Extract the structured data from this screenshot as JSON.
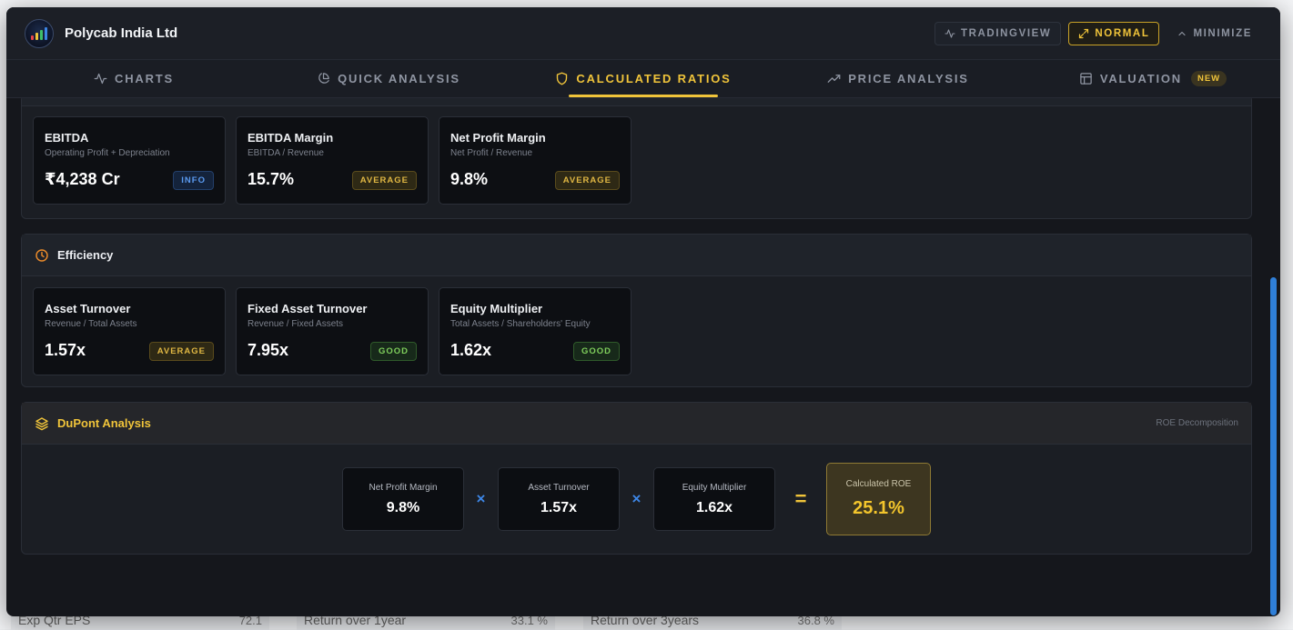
{
  "background": {
    "bottom_row": [
      {
        "label": "Exp Qtr EPS",
        "value": "72.1"
      },
      {
        "label": "Return over 1year",
        "value": "33.1 %"
      },
      {
        "label": "Return over 3years",
        "value": "36.8 %"
      }
    ]
  },
  "header": {
    "company": "Polycab India Ltd",
    "actions": [
      {
        "label": "TRADINGVIEW",
        "icon": "activity-icon"
      },
      {
        "label": "NORMAL",
        "icon": "expand-icon",
        "active": true
      },
      {
        "label": "MINIMIZE",
        "icon": "chevron-up-icon"
      }
    ]
  },
  "tabs": [
    {
      "label": "CHARTS",
      "icon": "activity-icon"
    },
    {
      "label": "QUICK ANALYSIS",
      "icon": "pie-chart-icon"
    },
    {
      "label": "CALCULATED RATIOS",
      "icon": "shield-icon",
      "active": true
    },
    {
      "label": "PRICE ANALYSIS",
      "icon": "trending-up-icon"
    },
    {
      "label": "VALUATION",
      "icon": "table-icon",
      "badge": "NEW"
    }
  ],
  "profitability": {
    "cards": [
      {
        "name": "EBITDA",
        "formula": "Operating Profit + Depreciation",
        "value": "₹4,238 Cr",
        "status": "INFO"
      },
      {
        "name": "EBITDA Margin",
        "formula": "EBITDA / Revenue",
        "value": "15.7%",
        "status": "AVERAGE"
      },
      {
        "name": "Net Profit Margin",
        "formula": "Net Profit / Revenue",
        "value": "9.8%",
        "status": "AVERAGE"
      }
    ]
  },
  "efficiency": {
    "title": "Efficiency",
    "cards": [
      {
        "name": "Asset Turnover",
        "formula": "Revenue / Total Assets",
        "value": "1.57x",
        "status": "AVERAGE"
      },
      {
        "name": "Fixed Asset Turnover",
        "formula": "Revenue / Fixed Assets",
        "value": "7.95x",
        "status": "GOOD"
      },
      {
        "name": "Equity Multiplier",
        "formula": "Total Assets / Shareholders' Equity",
        "value": "1.62x",
        "status": "GOOD"
      }
    ]
  },
  "dupont": {
    "title": "DuPont Analysis",
    "subtitle": "ROE Decomposition",
    "factors": [
      {
        "label": "Net Profit Margin",
        "value": "9.8%"
      },
      {
        "label": "Asset Turnover",
        "value": "1.57x"
      },
      {
        "label": "Equity Multiplier",
        "value": "1.62x"
      }
    ],
    "multiply_symbol": "×",
    "equals_symbol": "=",
    "result": {
      "label": "Calculated ROE",
      "value": "25.1%"
    }
  },
  "colors": {
    "accent": "#f0c43a",
    "info": "#5a9af0",
    "average": "#e0b743",
    "good": "#7fcf5c",
    "scrollbar": "#2f7fd8"
  }
}
